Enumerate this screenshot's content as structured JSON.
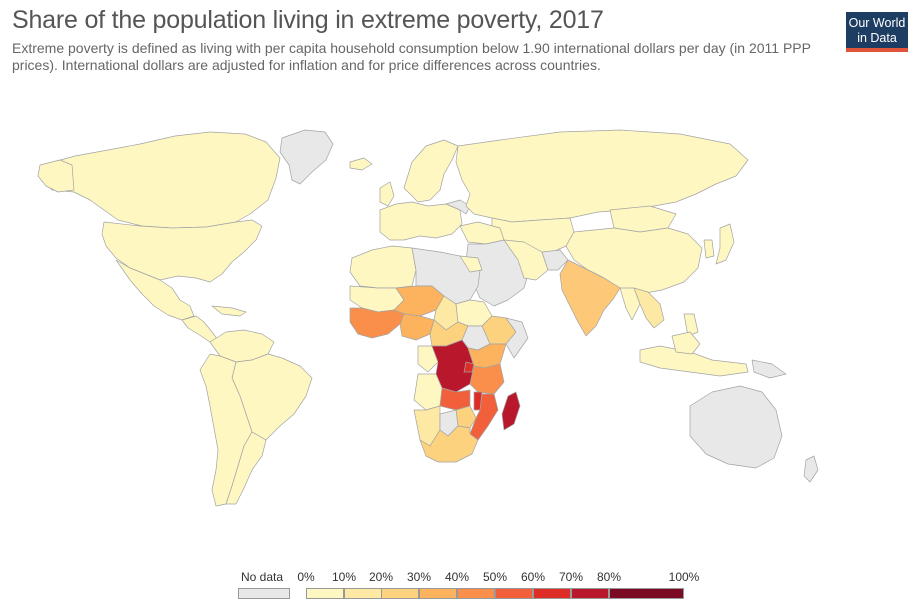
{
  "header": {
    "title": "Share of the population living in extreme poverty, 2017",
    "subtitle": "Extreme poverty is defined as living with per capita household consumption below 1.90 international dollars per day (in 2011 PPP prices). International dollars are adjusted for inflation and for price differences across countries.",
    "logo_line1": "Our World",
    "logo_line2": "in Data"
  },
  "colors": {
    "no_data": "#e8e8e8",
    "ocean": "#ffffff",
    "border": "#999999",
    "bins": [
      "#fef7c2",
      "#fde9a3",
      "#fdd27f",
      "#fdb25e",
      "#f98f4a",
      "#f2603b",
      "#de2d26",
      "#b9172c",
      "#7b0a24"
    ]
  },
  "legend": {
    "no_data_label": "No data",
    "tick_labels": [
      "0%",
      "10%",
      "20%",
      "30%",
      "40%",
      "50%",
      "60%",
      "70%",
      "80%",
      "100%"
    ]
  }
}
